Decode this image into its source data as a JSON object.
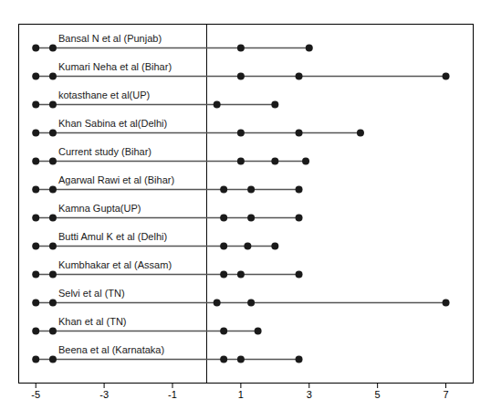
{
  "chart_data": {
    "type": "dot",
    "categories": [
      "Bansal N et al (Punjab)",
      "Kumari Neha et al (Bihar)",
      "kotasthane et al(UP)",
      "Khan Sabina et al(Delhi)",
      "Current study (Bihar)",
      "Agarwal Rawi et al (Bihar)",
      "Kamna Gupta(UP)",
      "Butti Amul K et al (Delhi)",
      "Kumbhakar et al (Assam)",
      "Selvi et al (TN)",
      "Khan et al (TN)",
      "Beena et al (Karnataka)"
    ],
    "values": [
      [
        1,
        3
      ],
      [
        1,
        2.7,
        7
      ],
      [
        0.3,
        2
      ],
      [
        1,
        2.7,
        4.5
      ],
      [
        1,
        2,
        2.9
      ],
      [
        0.5,
        1.3,
        2.7
      ],
      [
        0.5,
        1.3,
        2.7
      ],
      [
        0.5,
        1.2,
        2
      ],
      [
        0.5,
        1,
        2.7
      ],
      [
        0.3,
        1.3,
        7
      ],
      [
        0.5,
        1.5
      ],
      [
        0.5,
        1,
        2.7
      ]
    ],
    "connector": [
      -5.0,
      -4.5
    ],
    "vline": 0,
    "xlim": [
      -5.5,
      7.8
    ],
    "xticks": [
      -5,
      -3,
      -1,
      1,
      3,
      5,
      7
    ],
    "grid": false,
    "tick_labels": "x"
  }
}
